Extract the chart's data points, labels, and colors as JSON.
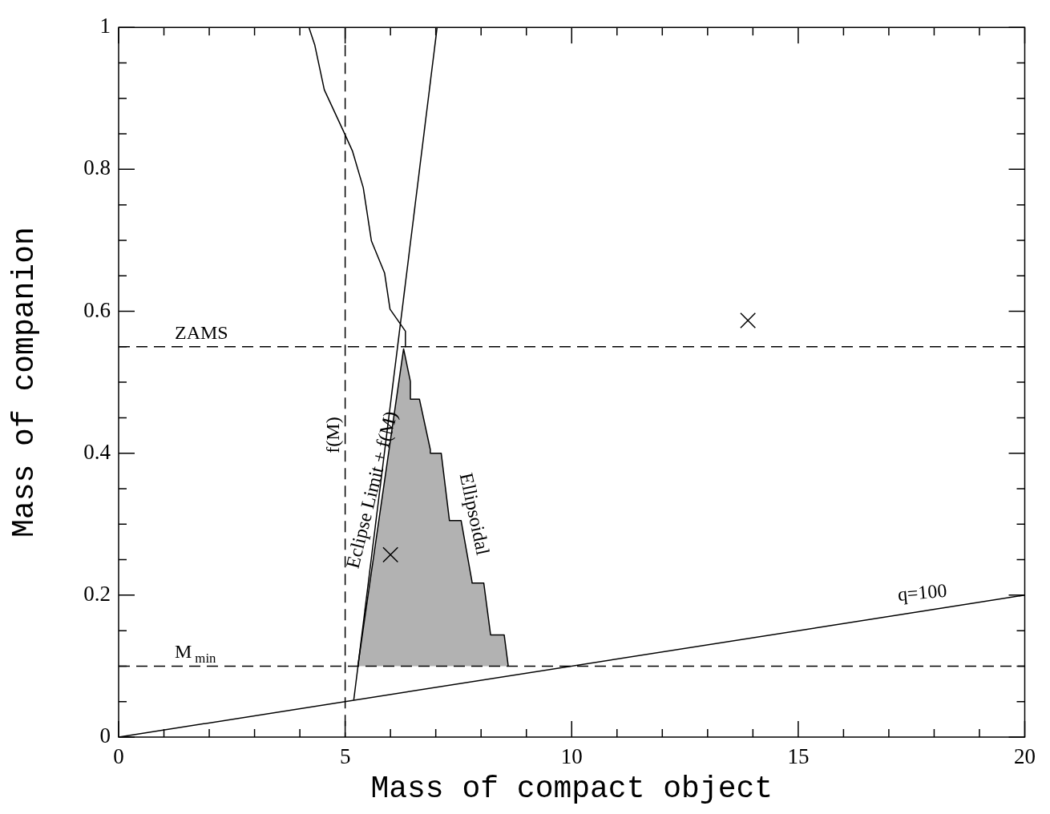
{
  "chart_data": {
    "type": "line",
    "xlabel": "Mass of compact object",
    "ylabel": "Mass of companion",
    "xlim": [
      0,
      20
    ],
    "ylim": [
      0,
      1
    ],
    "xticks": [
      0,
      {
        "value": 1,
        "label": null
      },
      {
        "value": 2,
        "label": null
      },
      {
        "value": 3,
        "label": null
      },
      {
        "value": 4,
        "label": null
      },
      5,
      {
        "value": 6,
        "label": null
      },
      {
        "value": 7,
        "label": null
      },
      {
        "value": 8,
        "label": null
      },
      {
        "value": 9,
        "label": null
      },
      10,
      {
        "value": 11,
        "label": null
      },
      {
        "value": 12,
        "label": null
      },
      {
        "value": 13,
        "label": null
      },
      {
        "value": 14,
        "label": null
      },
      15,
      {
        "value": 16,
        "label": null
      },
      {
        "value": 17,
        "label": null
      },
      {
        "value": 18,
        "label": null
      },
      {
        "value": 19,
        "label": null
      },
      20
    ],
    "yticks": [
      0,
      {
        "value": 0.05,
        "label": null
      },
      {
        "value": 0.1,
        "label": null
      },
      {
        "value": 0.15,
        "label": null
      },
      0.2,
      {
        "value": 0.25,
        "label": null
      },
      {
        "value": 0.3,
        "label": null
      },
      {
        "value": 0.35,
        "label": null
      },
      0.4,
      {
        "value": 0.45,
        "label": null
      },
      {
        "value": 0.5,
        "label": null
      },
      {
        "value": 0.55,
        "label": null
      },
      0.6,
      {
        "value": 0.65,
        "label": null
      },
      {
        "value": 0.7,
        "label": null
      },
      {
        "value": 0.75,
        "label": null
      },
      0.8,
      {
        "value": 0.85,
        "label": null
      },
      {
        "value": 0.9,
        "label": null
      },
      {
        "value": 0.95,
        "label": null
      },
      1
    ],
    "grid": false,
    "line_style": "solid",
    "series": [
      {
        "color": "#000000",
        "x": [
          4.2,
          4.33,
          4.54,
          4.99,
          5.16,
          5.4,
          5.58,
          5.87,
          5.99,
          6.33,
          6.33
        ],
        "values": [
          1.0,
          0.975,
          0.912,
          0.85,
          0.826,
          0.774,
          0.699,
          0.654,
          0.603,
          0.572,
          0.55
        ]
      },
      {
        "color": "#000000",
        "x": [
          5.19,
          7.03
        ],
        "values": [
          0.052,
          1.0
        ]
      },
      {
        "color": "#000000",
        "x": [
          0,
          20
        ],
        "values": [
          0,
          0.2
        ]
      },
      {
        "type": "line",
        "color": "#000000",
        "upper": [
          0.1,
          0.547,
          0.501,
          0.476,
          0.476,
          0.405,
          0.4,
          0.4,
          0.306,
          0.305,
          0.305,
          0.219,
          0.217,
          0.217,
          0.144,
          0.144,
          0.144,
          0.1
        ],
        "x": [
          5.28,
          6.29,
          6.44,
          6.44,
          6.64,
          6.88,
          6.88,
          7.12,
          7.3,
          7.3,
          7.56,
          7.8,
          7.8,
          8.06,
          8.21,
          8.21,
          8.51,
          8.6
        ],
        "values": [
          0.1,
          0.547,
          0.501,
          0.476,
          0.476,
          0.405,
          0.4,
          0.4,
          0.306,
          0.305,
          0.305,
          0.219,
          0.217,
          0.217,
          0.144,
          0.144,
          0.144,
          0.1
        ],
        "lower": [
          0.1,
          0.1,
          0.1,
          0.1,
          0.1,
          0.1,
          0.1,
          0.1,
          0.1,
          0.1,
          0.1,
          0.1,
          0.1,
          0.1,
          0.1,
          0.1,
          0.1,
          0.1
        ]
      },
      {
        "type": "scatter",
        "color": "#000000",
        "marker": "cross",
        "x": [
          13.89,
          6.0
        ],
        "values": [
          0.587,
          0.257
        ]
      }
    ],
    "ref_lines": [
      {
        "axis": "x",
        "value": 5,
        "label": "f(M)",
        "line_style": "dashed"
      },
      {
        "axis": "y",
        "value": 0.55,
        "label": "ZAMS",
        "line_style": "dashed"
      },
      {
        "axis": "y",
        "value": 0.1,
        "label": "M$_{min}$",
        "line_style": "dashed"
      }
    ],
    "annotations": [
      "Eclipse Limit + f(M)",
      "Ellipsoidal",
      "q=100"
    ]
  }
}
